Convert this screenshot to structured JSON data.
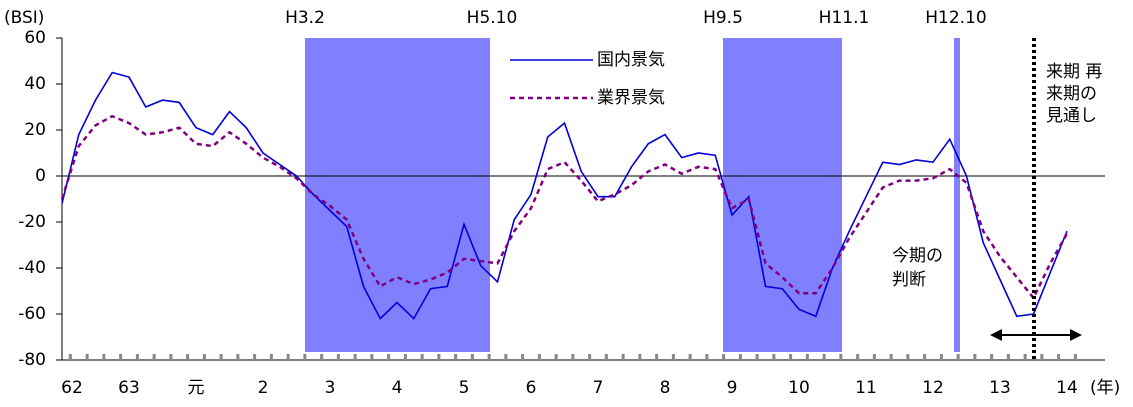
{
  "chart_data": {
    "type": "line",
    "y_unit": "(BSI)",
    "x_unit": "(年)",
    "categories": [
      "62",
      null,
      null,
      null,
      "63",
      null,
      null,
      null,
      "元",
      null,
      null,
      null,
      "2",
      null,
      null,
      null,
      "3",
      null,
      null,
      null,
      "4",
      null,
      null,
      null,
      "5",
      null,
      null,
      null,
      "6",
      null,
      null,
      null,
      "7",
      null,
      null,
      null,
      "8",
      null,
      null,
      null,
      "9",
      null,
      null,
      null,
      "10",
      null,
      null,
      null,
      "11",
      null,
      null,
      null,
      "12",
      null,
      null,
      null,
      "13",
      null,
      null,
      null,
      "14"
    ],
    "series": [
      {
        "name": "国内景気",
        "color": "#0000dd",
        "style": "solid",
        "values": [
          -12,
          18,
          33,
          45,
          43,
          30,
          33,
          32,
          21,
          18,
          28,
          21,
          10,
          5,
          0,
          -8,
          -15,
          -22,
          -48,
          -62,
          -55,
          -62,
          -49,
          -48,
          -21,
          -39,
          -46,
          -19,
          -8,
          17,
          23,
          2,
          -9,
          -9,
          4,
          14,
          18,
          8,
          10,
          9,
          -17,
          -9,
          -48,
          -49,
          -58,
          -61,
          -40,
          -24,
          -9,
          6,
          5,
          7,
          6,
          16,
          0,
          -29,
          -45,
          -61,
          -60,
          -42,
          -24
        ]
      },
      {
        "name": "業界景気",
        "color": "#800080",
        "style": "dashed",
        "values": [
          -10,
          13,
          22,
          26,
          23,
          18,
          19,
          21,
          14,
          13,
          19,
          14,
          8,
          4,
          -1,
          -8,
          -13,
          -19,
          -36,
          -48,
          -44,
          -47,
          -45,
          -42,
          -36,
          -37,
          -38,
          -24,
          -14,
          3,
          6,
          -2,
          -11,
          -8,
          -4,
          2,
          5,
          1,
          4,
          3,
          -14,
          -10,
          -38,
          -44,
          -51,
          -51,
          -40,
          -27,
          -16,
          -5,
          -2,
          -2,
          -1,
          3,
          -3,
          -24,
          -35,
          -44,
          -53,
          -38,
          -25
        ]
      }
    ],
    "ylim": [
      -80,
      60
    ],
    "yticks": [
      -80,
      -60,
      -40,
      -20,
      0,
      20,
      40,
      60
    ],
    "bands": [
      {
        "start": "H3.2",
        "end": "H5.10"
      },
      {
        "start": "H9.5",
        "end": "H11.1"
      },
      {
        "start": "H12.10"
      }
    ],
    "band_color": "#8080ff",
    "annotations": {
      "current": [
        "今期の",
        "判断"
      ],
      "outlook": [
        "来期 再",
        "来期の",
        "見通し"
      ]
    }
  }
}
